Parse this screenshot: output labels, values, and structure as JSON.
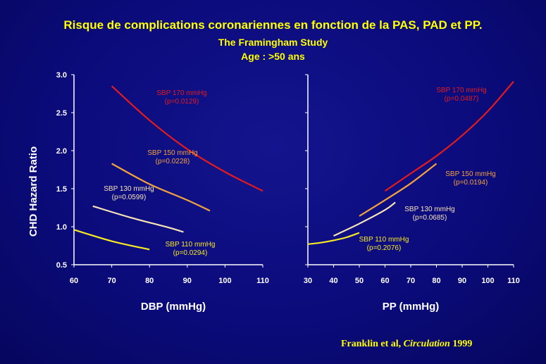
{
  "header": {
    "title": "Risque de complications coronariennes en fonction de la PAS, PAD et PP.",
    "subtitle": "The Framingham Study",
    "subtitle2": "Age : >50 ans"
  },
  "credit": {
    "authors": "Franklin et al,",
    "journal": "Circulation",
    "year": "1999"
  },
  "chart_data": [
    {
      "type": "line",
      "xlabel": "DBP (mmHg)",
      "ylabel": "CHD Hazard Ratio",
      "xlim": [
        60,
        110
      ],
      "ylim": [
        0.5,
        3.0
      ],
      "xticks": [
        60,
        70,
        80,
        90,
        100,
        110
      ],
      "yticks": [
        0.5,
        1.0,
        1.5,
        2.0,
        2.5,
        3.0
      ],
      "series": [
        {
          "name": "SBP 170 mmHg",
          "pvalue": "(p=0.0129)",
          "color": "#e31b1b",
          "x": [
            70,
            80,
            90,
            100,
            110
          ],
          "y": [
            2.85,
            2.4,
            2.02,
            1.72,
            1.47
          ]
        },
        {
          "name": "SBP 150 mmHg",
          "pvalue": "(p=0.0228)",
          "color": "#f4a23c",
          "x": [
            70,
            80,
            90,
            96
          ],
          "y": [
            1.83,
            1.56,
            1.35,
            1.21
          ]
        },
        {
          "name": "SBP 130 mmHg",
          "pvalue": "(p=0.0599)",
          "color": "#f7e3b5",
          "x": [
            65,
            75,
            85,
            89
          ],
          "y": [
            1.27,
            1.12,
            0.99,
            0.93
          ]
        },
        {
          "name": "SBP 110 mmHg",
          "pvalue": "(p=0.0294)",
          "color": "#f6e823",
          "x": [
            60,
            70,
            80
          ],
          "y": [
            0.96,
            0.81,
            0.7
          ]
        }
      ]
    },
    {
      "type": "line",
      "xlabel": "PP (mmHg)",
      "xlim": [
        30,
        110
      ],
      "ylim": [
        0.5,
        3.0
      ],
      "xticks": [
        30,
        40,
        50,
        60,
        70,
        80,
        90,
        100,
        110
      ],
      "series": [
        {
          "name": "SBP 170 mmHg",
          "pvalue": "(p=0.0487)",
          "color": "#e31b1b",
          "x": [
            60,
            70,
            80,
            90,
            100,
            110
          ],
          "y": [
            1.47,
            1.7,
            1.93,
            2.2,
            2.52,
            2.91
          ]
        },
        {
          "name": "SBP 150 mmHg",
          "pvalue": "(p=0.0194)",
          "color": "#f4a23c",
          "x": [
            50,
            60,
            70,
            80
          ],
          "y": [
            1.14,
            1.35,
            1.57,
            1.83
          ]
        },
        {
          "name": "SBP 130 mmHg",
          "pvalue": "(p=0.0685)",
          "color": "#f7e3b5",
          "x": [
            40,
            50,
            60,
            64
          ],
          "y": [
            0.88,
            1.04,
            1.22,
            1.32
          ]
        },
        {
          "name": "SBP 110 mmHg",
          "pvalue": "(p=0.2076)",
          "color": "#f6e823",
          "x": [
            30,
            35,
            40,
            45,
            50
          ],
          "y": [
            0.77,
            0.79,
            0.82,
            0.86,
            0.92
          ]
        }
      ]
    }
  ]
}
